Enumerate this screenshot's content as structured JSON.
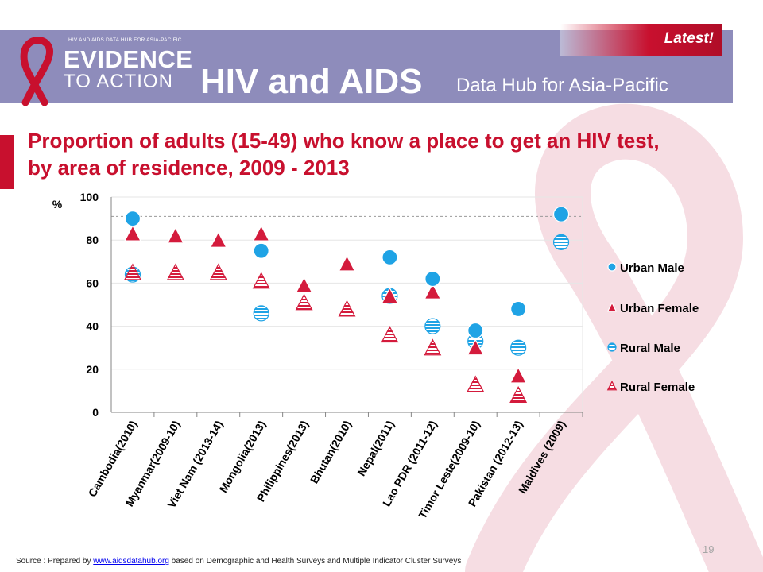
{
  "header": {
    "logo_small": "HIV AND AIDS DATA HUB FOR ASIA-PACIFIC",
    "logo_line1": "EVIDENCE",
    "logo_line2": "TO ACTION",
    "title": "HIV and AIDS",
    "subtitle": "Data Hub for Asia-Pacific",
    "latest": "Latest!"
  },
  "slide": {
    "title": "Proportion of adults (15-49) who know a place to get an HIV test, by area of residence, 2009 - 2013",
    "page_number": "19"
  },
  "source": {
    "prefix": "Source : Prepared by ",
    "link": "www.aidsdatahub.org",
    "suffix": " based on Demographic and Health Surveys and Multiple Indicator Cluster  Surveys"
  },
  "colors": {
    "accent": "#c8102e",
    "header": "#8e8cbb",
    "urban_male": "#1fa3e5",
    "urban_female": "#d41b3c",
    "rural_male": "#1fa3e5",
    "rural_female": "#d41b3c"
  },
  "chart_data": {
    "type": "scatter",
    "ylabel": "%",
    "ylim": [
      0,
      100
    ],
    "yticks": [
      0,
      20,
      40,
      60,
      80,
      100
    ],
    "grid": true,
    "reference_line": 91,
    "legend_position": "right",
    "categories": [
      "Cambodia(2010)",
      "Myanmar(2009-10)",
      "Viet Nam (2013-14)",
      "Mongolia(2013)",
      "Philippines(2013)",
      "Bhutan(2010)",
      "Nepal(2011)",
      "Lao PDR (2011-12)",
      "Timor Leste(2009-10)",
      "Pakistan (2012-13)",
      "Maldives (2009)"
    ],
    "series": [
      {
        "name": "Urban   Male",
        "marker": "circle",
        "pattern": "solid",
        "values": [
          90,
          null,
          null,
          75,
          null,
          null,
          72,
          62,
          38,
          48,
          92
        ]
      },
      {
        "name": "Urban   Female",
        "marker": "triangle",
        "pattern": "solid",
        "values": [
          83,
          82,
          80,
          83,
          59,
          69,
          54,
          56,
          30,
          17,
          null
        ]
      },
      {
        "name": "Rural Male",
        "marker": "circle",
        "pattern": "striped",
        "values": [
          64,
          null,
          null,
          46,
          null,
          null,
          54,
          40,
          33,
          30,
          79
        ]
      },
      {
        "name": "Rural Female",
        "marker": "triangle",
        "pattern": "striped",
        "values": [
          65,
          65,
          65,
          61,
          51,
          48,
          36,
          30,
          13,
          8,
          null
        ]
      }
    ]
  }
}
